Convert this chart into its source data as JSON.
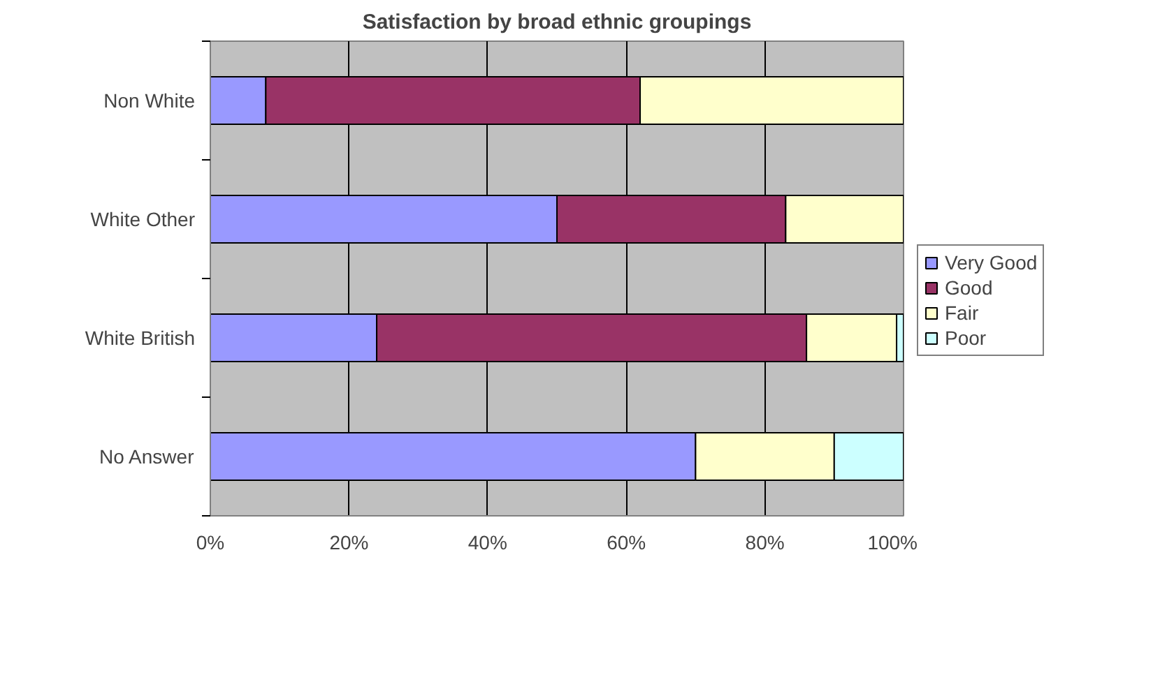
{
  "chart_data": {
    "type": "bar",
    "orientation": "horizontal",
    "stacked": true,
    "title": "Satisfaction by broad ethnic groupings",
    "categories": [
      "Non White",
      "White Other",
      "White British",
      "No Answer"
    ],
    "series": [
      {
        "name": "Very Good",
        "color": "#9999ff",
        "values": [
          8,
          50,
          24,
          70
        ]
      },
      {
        "name": "Good",
        "color": "#993366",
        "values": [
          54,
          33,
          62,
          null
        ]
      },
      {
        "name": "Fair",
        "color": "#ffffcc",
        "values": [
          38,
          17,
          13,
          20
        ]
      },
      {
        "name": "Poor",
        "color": "#ccffff",
        "values": [
          null,
          null,
          1,
          10
        ]
      }
    ],
    "xlim": [
      0,
      100
    ],
    "xticks": [
      {
        "value": 0,
        "label": "0%"
      },
      {
        "value": 20,
        "label": "20%"
      },
      {
        "value": 40,
        "label": "40%"
      },
      {
        "value": 60,
        "label": "60%"
      },
      {
        "value": 80,
        "label": "80%"
      },
      {
        "value": 100,
        "label": "100%"
      }
    ],
    "grid": "x",
    "legend": "right"
  }
}
